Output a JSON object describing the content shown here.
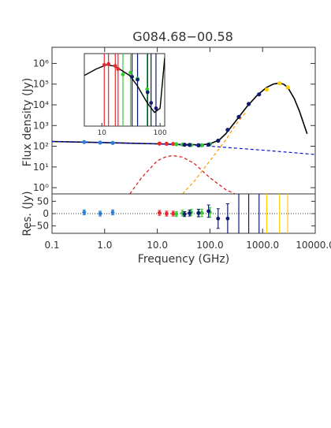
{
  "chart_data": [
    {
      "type": "scatter",
      "title": "G084.68−00.58",
      "xlabel": "",
      "ylabel": "Flux density (Jy)",
      "xscale": "log",
      "yscale": "log",
      "xlim": [
        0.1,
        10000
      ],
      "ylim": [
        0.5,
        6000000
      ],
      "y_tick_values": [
        1,
        10,
        100,
        1000,
        10000,
        100000,
        1000000
      ],
      "y_tick_labels": [
        "10⁰",
        "10¹",
        "10²",
        "10³",
        "10⁴",
        "10⁵",
        "10⁶"
      ],
      "series": [
        {
          "color": "#2b7fd6",
          "x": [
            0.408,
            0.82,
            1.42
          ],
          "y": [
            160,
            150,
            145
          ]
        },
        {
          "color": "#e8272b",
          "x": [
            11.0,
            15.0,
            20.0
          ],
          "y": [
            135,
            132,
            130
          ]
        },
        {
          "color": "#33cc33",
          "x": [
            23,
            30,
            44,
            60,
            70,
            100
          ],
          "y": [
            125,
            120,
            115,
            112,
            112,
            125
          ]
        },
        {
          "color": "#101b6e",
          "x": [
            33,
            41,
            61,
            94,
            143,
            217,
            353,
            545,
            857
          ],
          "y": [
            118,
            116,
            112,
            120,
            185,
            620,
            2600,
            11000,
            32000
          ]
        },
        {
          "color": "#ffcc00",
          "x": [
            1200,
            2100,
            3000
          ],
          "y": [
            55000,
            110000,
            70000
          ]
        }
      ],
      "model_curves": [
        {
          "name": "total",
          "color": "#000000",
          "style": "solid",
          "x": [
            0.1,
            0.3,
            1,
            3,
            10,
            20,
            40,
            70,
            100,
            150,
            200,
            300,
            500,
            800,
            1200,
            1600,
            2000,
            2500,
            3000,
            4000,
            5000,
            7000
          ],
          "y": [
            170,
            160,
            150,
            140,
            130,
            125,
            120,
            118,
            130,
            200,
            400,
            1500,
            8000,
            30000,
            70000,
            100000,
            110000,
            100000,
            70000,
            20000,
            5000,
            400
          ]
        },
        {
          "name": "synchrotron",
          "color": "#1111cc",
          "style": "dashed",
          "x": [
            0.1,
            1,
            10,
            100,
            1000,
            10000
          ],
          "y": [
            170,
            150,
            130,
            100,
            65,
            40
          ]
        },
        {
          "name": "ame",
          "color": "#dd1111",
          "style": "dashed",
          "x": [
            3,
            5,
            10,
            15,
            20,
            30,
            50,
            100,
            200,
            300
          ],
          "y": [
            0.5,
            3,
            20,
            32,
            35,
            30,
            15,
            3,
            0.8,
            0.5
          ]
        },
        {
          "name": "dust",
          "color": "#ff9900",
          "style": "dashed",
          "x": [
            30,
            50,
            100,
            200,
            300,
            500
          ],
          "y": [
            0.5,
            2,
            20,
            200,
            1000,
            5000
          ]
        }
      ]
    },
    {
      "type": "scatter",
      "title": "",
      "xlabel": "",
      "ylabel": "",
      "xscale": "log",
      "yscale": "log",
      "xlim": [
        5,
        120
      ],
      "ylim": [
        10,
        2000000
      ],
      "x_tick_values": [
        10,
        100
      ],
      "x_tick_labels": [
        "10",
        "100"
      ],
      "series": [
        {
          "color": "#e8272b",
          "x": [
            11,
            13,
            17,
            19
          ],
          "y": [
            300000,
            350000,
            250000,
            150000
          ]
        },
        {
          "color": "#33cc33",
          "x": [
            23,
            31,
            41,
            60
          ],
          "y": [
            60000,
            80000,
            30000,
            5000
          ]
        },
        {
          "color": "#101b6e",
          "x": [
            33,
            41,
            61,
            70,
            85
          ],
          "y": [
            40000,
            25000,
            3000,
            500,
            200
          ]
        }
      ],
      "model_curves": [
        {
          "name": "inset-model",
          "color": "#000000",
          "style": "solid",
          "x": [
            5,
            8,
            12,
            16,
            20,
            30,
            40,
            60,
            80,
            100,
            120
          ],
          "y": [
            50000,
            150000,
            300000,
            250000,
            150000,
            50000,
            10000,
            500,
            100,
            200,
            1000000
          ]
        }
      ]
    },
    {
      "type": "scatter",
      "title": "",
      "xlabel": "Frequency (GHz)",
      "ylabel": "Res. (Jy)",
      "xscale": "log",
      "yscale": "linear",
      "xlim": [
        0.1,
        10000
      ],
      "ylim": [
        -80,
        80
      ],
      "x_tick_values": [
        0.1,
        1,
        10,
        100,
        1000,
        10000
      ],
      "x_tick_labels": [
        "0.1",
        "1.0",
        "10.0",
        "100.0",
        "1000.0",
        "10000.0"
      ],
      "y_tick_values": [
        50,
        0,
        -50
      ],
      "y_tick_labels": [
        "50",
        "0",
        "−50"
      ],
      "series": [
        {
          "color": "#2b7fd6",
          "x": [
            0.408,
            0.82,
            1.42
          ],
          "y": [
            5,
            0,
            5
          ],
          "err": [
            10,
            10,
            10
          ]
        },
        {
          "color": "#e8272b",
          "x": [
            11.0,
            15.0,
            20.0
          ],
          "y": [
            3,
            0,
            0
          ],
          "err": [
            10,
            10,
            10
          ]
        },
        {
          "color": "#33cc33",
          "x": [
            23,
            30,
            44,
            60,
            70,
            100
          ],
          "y": [
            -2,
            2,
            5,
            3,
            3,
            5
          ],
          "err": [
            10,
            12,
            12,
            15,
            15,
            20
          ]
        },
        {
          "color": "#101b6e",
          "x": [
            33,
            41,
            61,
            94,
            143,
            217,
            353,
            545,
            857
          ],
          "y": [
            -2,
            2,
            2,
            10,
            -20,
            -20,
            0,
            0,
            0
          ],
          "err": [
            10,
            12,
            15,
            25,
            40,
            60,
            150,
            150,
            150
          ]
        },
        {
          "color": "#ffcc00",
          "x": [
            1200,
            2100,
            3000
          ],
          "y": [
            0,
            0,
            0
          ],
          "err": [
            150,
            150,
            150
          ]
        }
      ]
    }
  ]
}
